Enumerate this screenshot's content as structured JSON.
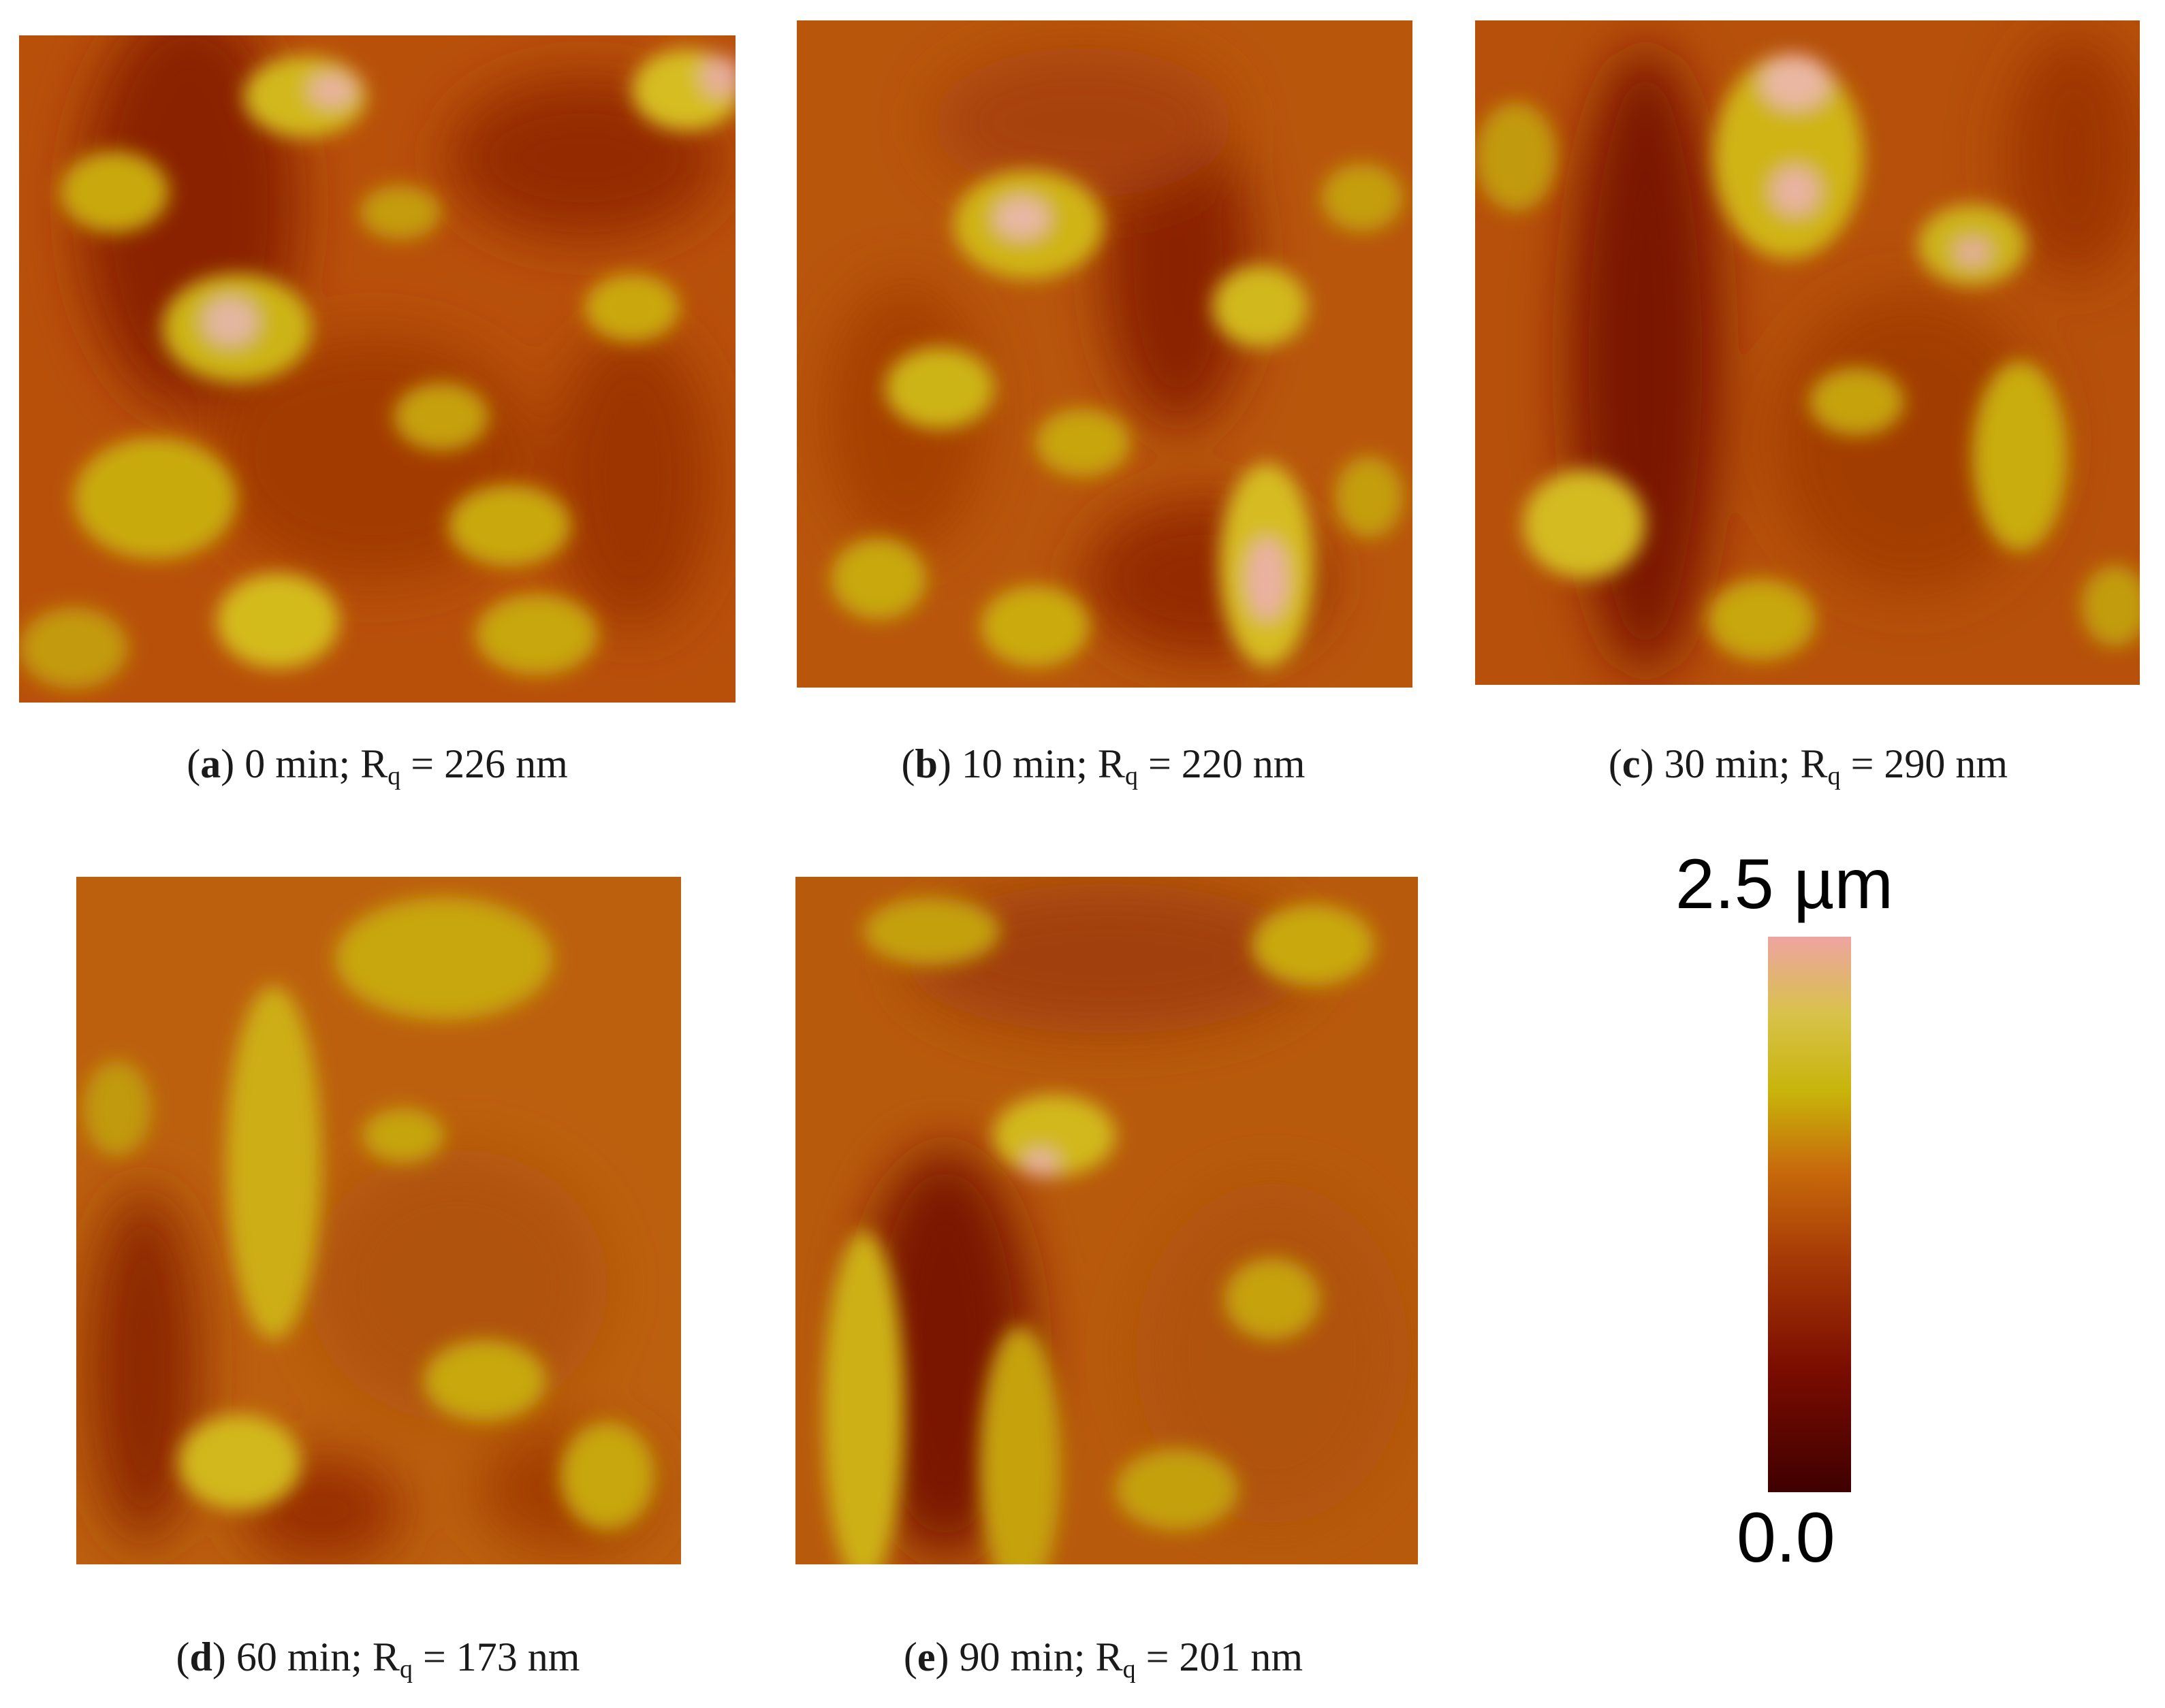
{
  "figure": {
    "panels": [
      {
        "id": "a",
        "letter": "a",
        "time": "0 min",
        "rq_value": "226 nm"
      },
      {
        "id": "b",
        "letter": "b",
        "time": "10 min",
        "rq_value": "220 nm"
      },
      {
        "id": "c",
        "letter": "c",
        "time": "30 min",
        "rq_value": "290 nm"
      },
      {
        "id": "d",
        "letter": "d",
        "time": "60 min",
        "rq_value": "173 nm"
      },
      {
        "id": "e",
        "letter": "e",
        "time": "90 min",
        "rq_value": "201 nm"
      }
    ],
    "rq_symbol": "R",
    "rq_subscript": "q",
    "colorbar": {
      "max_label": "2.5 µm",
      "min_label": "0.0",
      "colors": [
        "#3f0000",
        "#7a0c00",
        "#a63a06",
        "#c86a0c",
        "#c8b40a",
        "#d8c24a",
        "#eda4a0"
      ]
    }
  }
}
